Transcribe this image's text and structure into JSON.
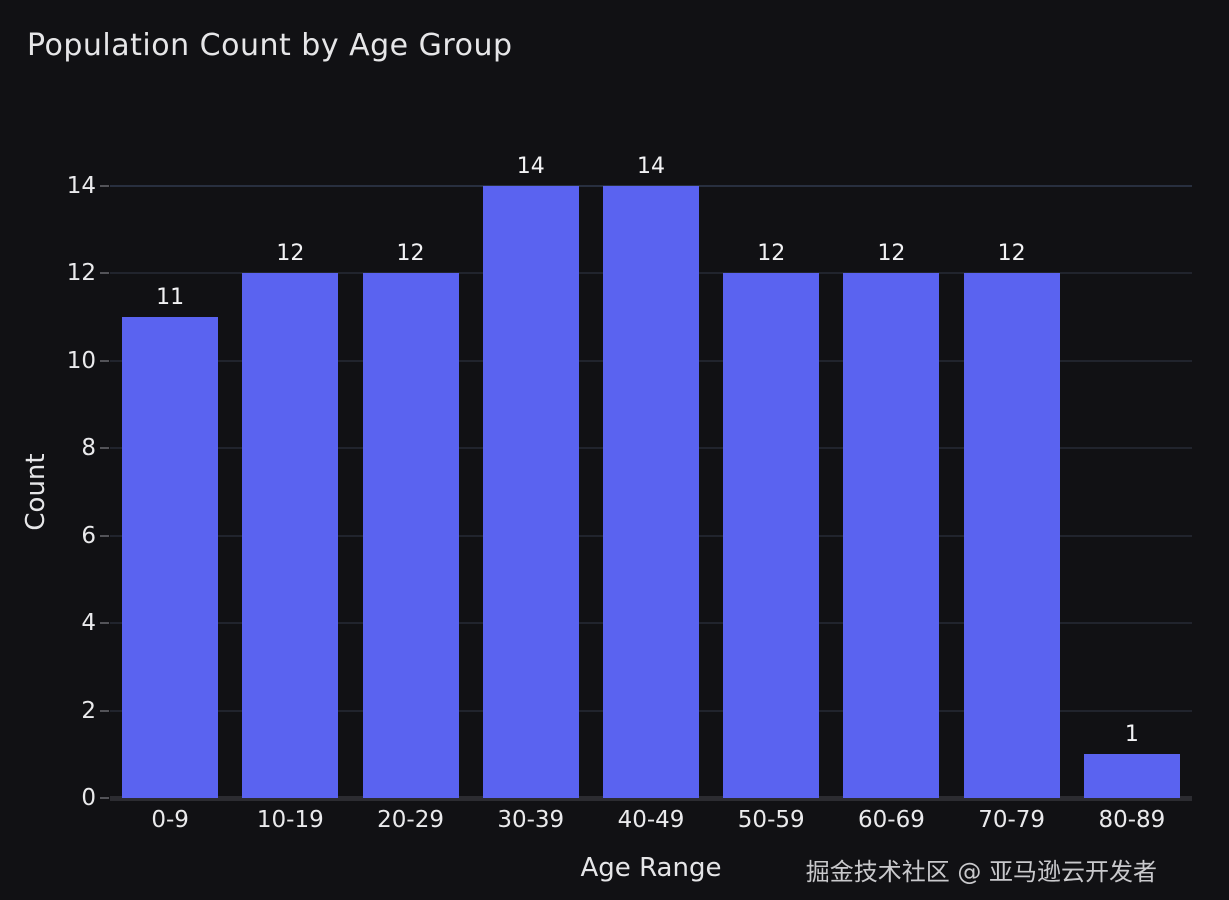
{
  "title": "Population Count by Age Group",
  "watermark": "掘金技术社区 @ 亚马逊云开发者",
  "colors": {
    "background": "#111114",
    "bar": "#5a63f0",
    "gridline": "#303a4e",
    "baseline": "#2c2c31",
    "text": "#e6e6e8"
  },
  "chart_data": {
    "type": "bar",
    "categories": [
      "0-9",
      "10-19",
      "20-29",
      "30-39",
      "40-49",
      "50-59",
      "60-69",
      "70-79",
      "80-89"
    ],
    "values": [
      11,
      12,
      12,
      14,
      14,
      12,
      12,
      12,
      1
    ],
    "title": "Population Count by Age Group",
    "xlabel": "Age Range",
    "ylabel": "Count",
    "ylim": [
      0,
      14
    ],
    "yticks": [
      0,
      2,
      4,
      6,
      8,
      10,
      12,
      14
    ],
    "grid": true,
    "legend": false,
    "data_labels": true,
    "bar_color": "#5a63f0"
  }
}
